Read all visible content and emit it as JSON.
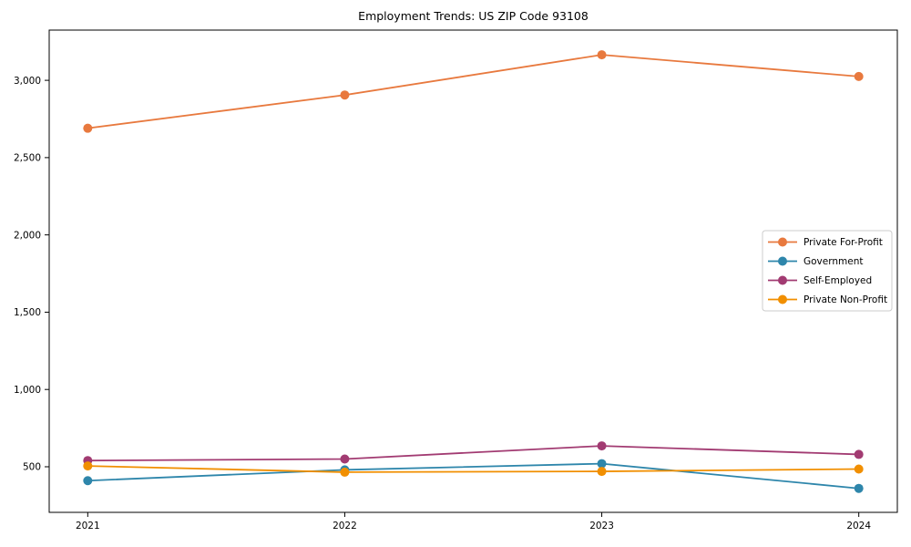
{
  "chart_data": {
    "type": "line",
    "title": "Employment Trends: US ZIP Code 93108",
    "x": [
      2021,
      2022,
      2023,
      2024
    ],
    "series": [
      {
        "name": "Private For-Profit",
        "color": "#E8793E",
        "values": [
          2690,
          2905,
          3165,
          3025
        ]
      },
      {
        "name": "Government",
        "color": "#2E86AB",
        "values": [
          410,
          480,
          520,
          360
        ]
      },
      {
        "name": "Self-Employed",
        "color": "#A23B72",
        "values": [
          540,
          550,
          635,
          580
        ]
      },
      {
        "name": "Private Non-Profit",
        "color": "#F18F01",
        "values": [
          505,
          465,
          470,
          485
        ]
      }
    ],
    "xlabel": "",
    "ylabel": "",
    "xlim": [
      2020.85,
      2024.15
    ],
    "ylim": [
      205,
      3325
    ],
    "xticks": [
      2021,
      2022,
      2023,
      2024
    ],
    "yticks": [
      500,
      1000,
      1500,
      2000,
      2500,
      3000
    ],
    "grid": false,
    "legend_position": "center-right",
    "marker": "circle",
    "background_color": "#ffffff",
    "axis_color": "#000000",
    "text_color": "#000000",
    "legend_border_color": "#cccccc"
  }
}
